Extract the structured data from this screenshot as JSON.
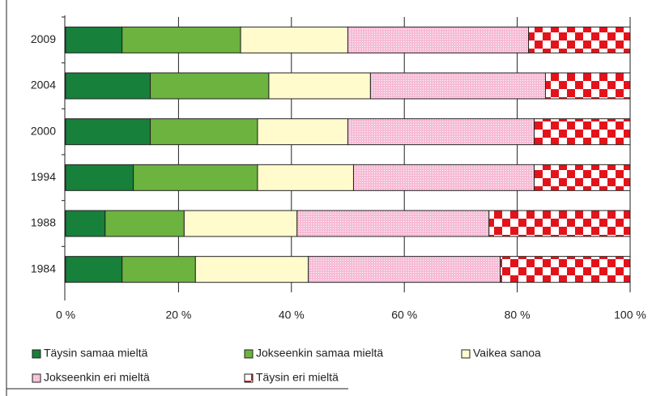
{
  "chart_data": {
    "type": "stacked-bar-horizontal",
    "categories": [
      "2009",
      "2004",
      "2000",
      "1994",
      "1988",
      "1984"
    ],
    "series": [
      {
        "name": "Täysin samaa mieltä",
        "color": "#17803a",
        "pattern": "solid",
        "values": [
          10,
          15,
          15,
          12,
          7,
          10
        ]
      },
      {
        "name": "Jokseenkin samaa mieltä",
        "color": "#6cb33f",
        "pattern": "solid",
        "values": [
          21,
          21,
          19,
          22,
          14,
          13
        ]
      },
      {
        "name": "Vaikea sanoa",
        "color": "#fffbcc",
        "pattern": "solid",
        "values": [
          19,
          18,
          16,
          17,
          20,
          20
        ]
      },
      {
        "name": "Jokseenkin eri mieltä",
        "color": "#f6bcd6",
        "pattern": "dots",
        "values": [
          32,
          31,
          33,
          32,
          34,
          34
        ]
      },
      {
        "name": "Täysin eri mieltä",
        "color": "#e3131b",
        "pattern": "checker",
        "values": [
          18,
          15,
          17,
          17,
          25,
          23
        ]
      }
    ],
    "xlim": [
      0,
      100
    ],
    "xticks": [
      {
        "value": 0,
        "label": "0 %"
      },
      {
        "value": 20,
        "label": "20 %"
      },
      {
        "value": 40,
        "label": "40 %"
      },
      {
        "value": 60,
        "label": "60 %"
      },
      {
        "value": 80,
        "label": "80 %"
      },
      {
        "value": 100,
        "label": "100 %"
      }
    ],
    "grid": true
  }
}
